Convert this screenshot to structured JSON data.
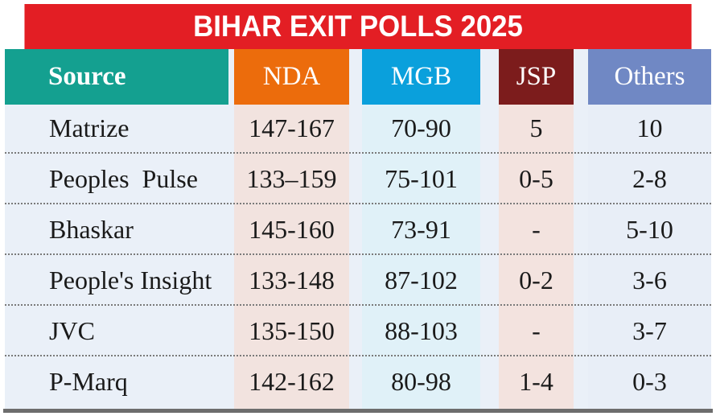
{
  "chart_data": {
    "type": "table",
    "title": "BIHAR EXIT POLLS 2025",
    "columns": [
      "Source",
      "NDA",
      "MGB",
      "JSP",
      "Others"
    ],
    "column_colors": {
      "Source": "#14a090",
      "NDA": "#ec6c0c",
      "MGB": "#0aa0dc",
      "JSP": "#7c1c1c",
      "Others": "#7088c4"
    },
    "column_body_colors": {
      "Source": "#eaf0f8",
      "NDA": "#f2e3df",
      "MGB": "#e0f1f8",
      "JSP": "#f3e3df",
      "Others": "#e8eef7"
    },
    "rows": [
      [
        "Matrize",
        "147-167",
        "70-90",
        "5",
        "10"
      ],
      [
        "Peoples  Pulse",
        "133–159",
        "75-101",
        "0-5",
        "2-8"
      ],
      [
        "Bhaskar",
        "145-160",
        "73-91",
        "-",
        "5-10"
      ],
      [
        "People's Insight",
        "133-148",
        "87-102",
        "0-2",
        "3-6"
      ],
      [
        "JVC",
        "135-150",
        "88-103",
        "-",
        "3-7"
      ],
      [
        "P-Marq",
        "142-162",
        "80-98",
        "1-4",
        "0-3"
      ]
    ]
  }
}
